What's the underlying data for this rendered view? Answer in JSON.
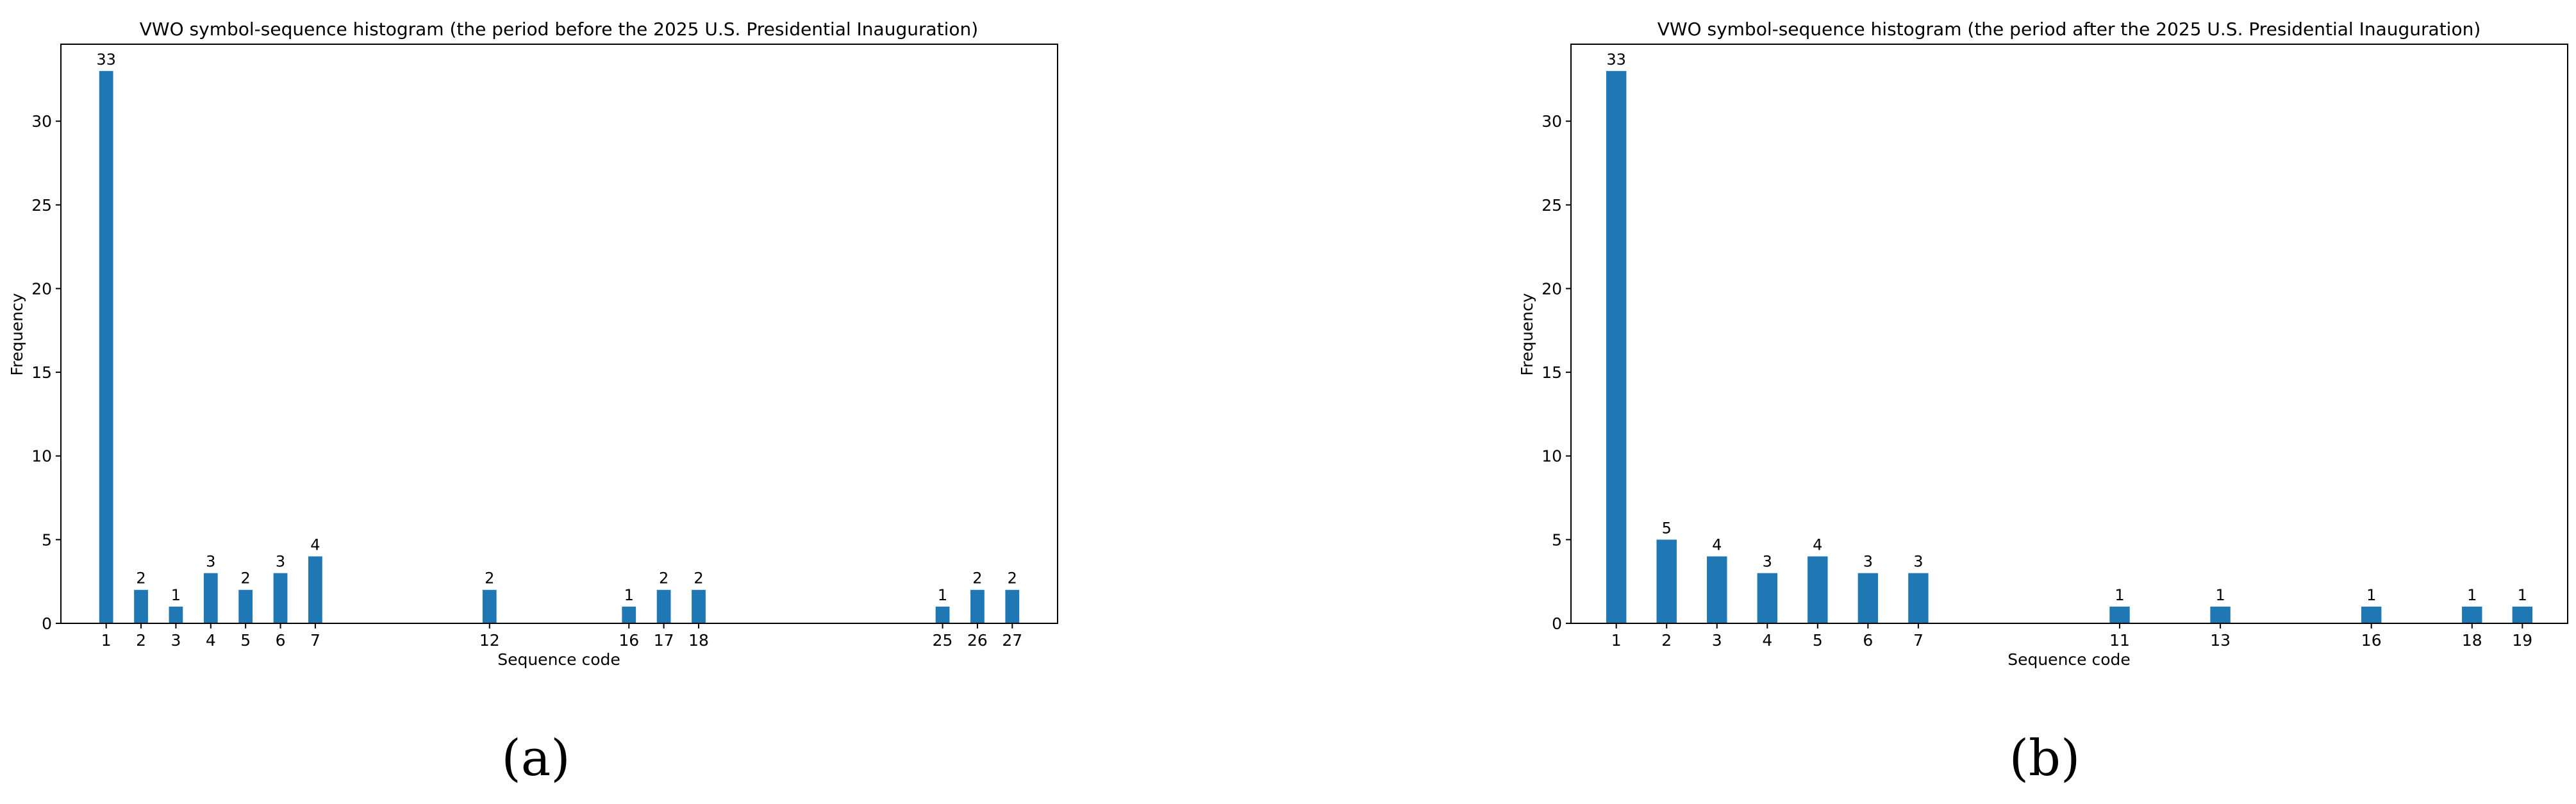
{
  "bar_color": "#1f77b4",
  "chart_data": [
    {
      "type": "bar",
      "title": "VWO symbol-sequence histogram (the period before the 2025 U.S. Presidential Inauguration)",
      "xlabel": "Sequence code",
      "ylabel": "Frequency",
      "caption": "(a)",
      "categories": [
        1,
        2,
        3,
        4,
        5,
        6,
        7,
        12,
        16,
        17,
        18,
        25,
        26,
        27
      ],
      "values": [
        33,
        2,
        1,
        3,
        2,
        3,
        4,
        2,
        1,
        2,
        2,
        1,
        2,
        2
      ],
      "xlim": [
        -0.3,
        28.3
      ],
      "ylim": [
        0,
        34.6
      ],
      "yticks": [
        0,
        5,
        10,
        15,
        20,
        25,
        30
      ],
      "grid": false,
      "data_labels": true
    },
    {
      "type": "bar",
      "title": "VWO symbol-sequence histogram (the period after the 2025 U.S. Presidential Inauguration)",
      "xlabel": "Sequence code",
      "ylabel": "Frequency",
      "caption": "(b)",
      "categories": [
        1,
        2,
        3,
        4,
        5,
        6,
        7,
        11,
        13,
        16,
        18,
        19
      ],
      "values": [
        33,
        5,
        4,
        3,
        4,
        3,
        3,
        1,
        1,
        1,
        1,
        1
      ],
      "xlim": [
        0.1,
        19.9
      ],
      "ylim": [
        0,
        34.6
      ],
      "yticks": [
        0,
        5,
        10,
        15,
        20,
        25,
        30
      ],
      "grid": false,
      "data_labels": true
    }
  ]
}
